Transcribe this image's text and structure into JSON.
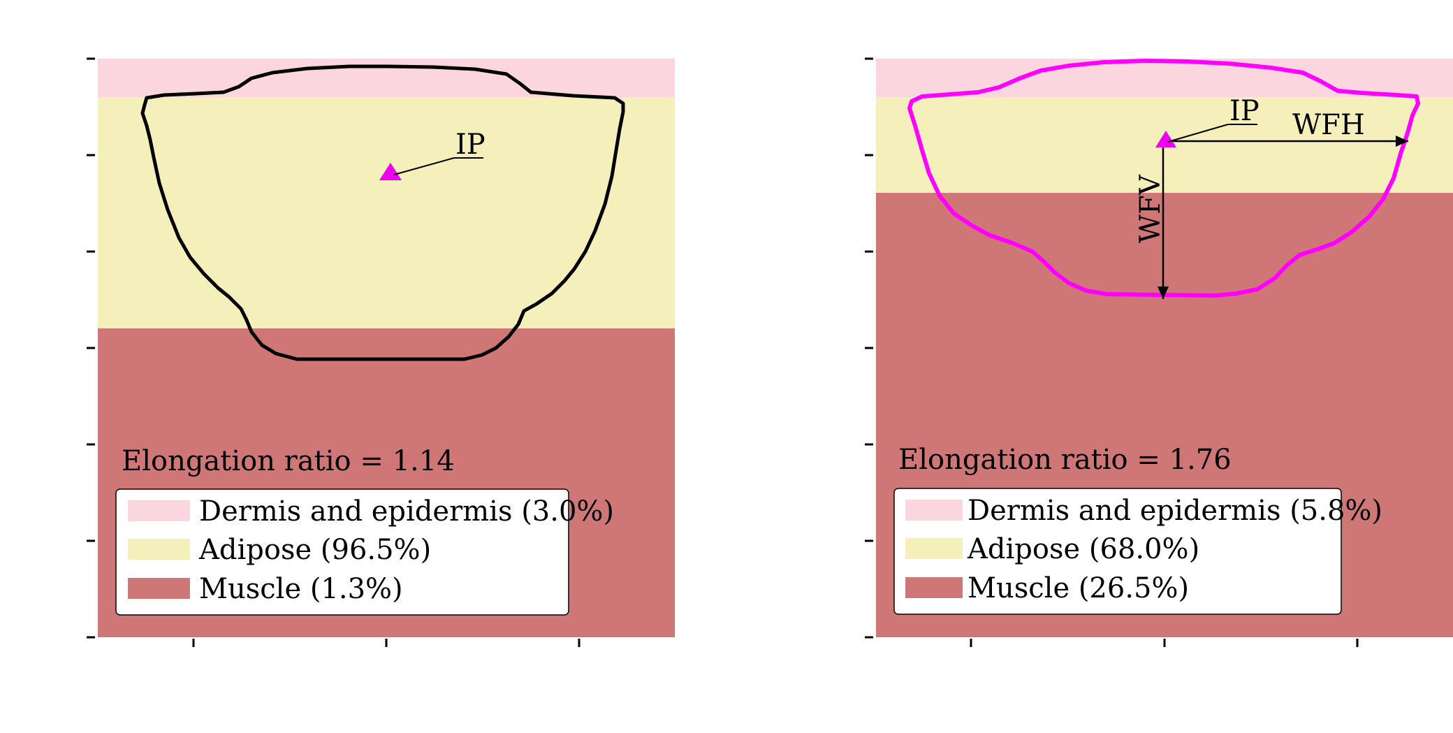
{
  "colors": {
    "dermis": "#fbd6df",
    "adipose": "#f5efbb",
    "muscle": "#cf7777",
    "marker": "#ee00ee",
    "outline_left": "#000000",
    "outline_right": "#ff00ff"
  },
  "panels": [
    {
      "ratio_text": "Elongation ratio = 1.14",
      "ip_label": "IP",
      "legend": [
        {
          "label": "Dermis and epidermis (3.0%)",
          "color_key": "dermis"
        },
        {
          "label": "Adipose (96.5%)",
          "color_key": "adipose"
        },
        {
          "label": "Muscle (1.3%)",
          "color_key": "muscle"
        }
      ]
    },
    {
      "ratio_text": "Elongation ratio = 1.76",
      "ip_label": "IP",
      "wfh_label": "WFH",
      "wfv_label": "WFV",
      "legend": [
        {
          "label": "Dermis and epidermis (5.8%)",
          "color_key": "dermis"
        },
        {
          "label": "Adipose (68.0%)",
          "color_key": "adipose"
        },
        {
          "label": "Muscle (26.5%)",
          "color_key": "muscle"
        }
      ]
    }
  ]
}
